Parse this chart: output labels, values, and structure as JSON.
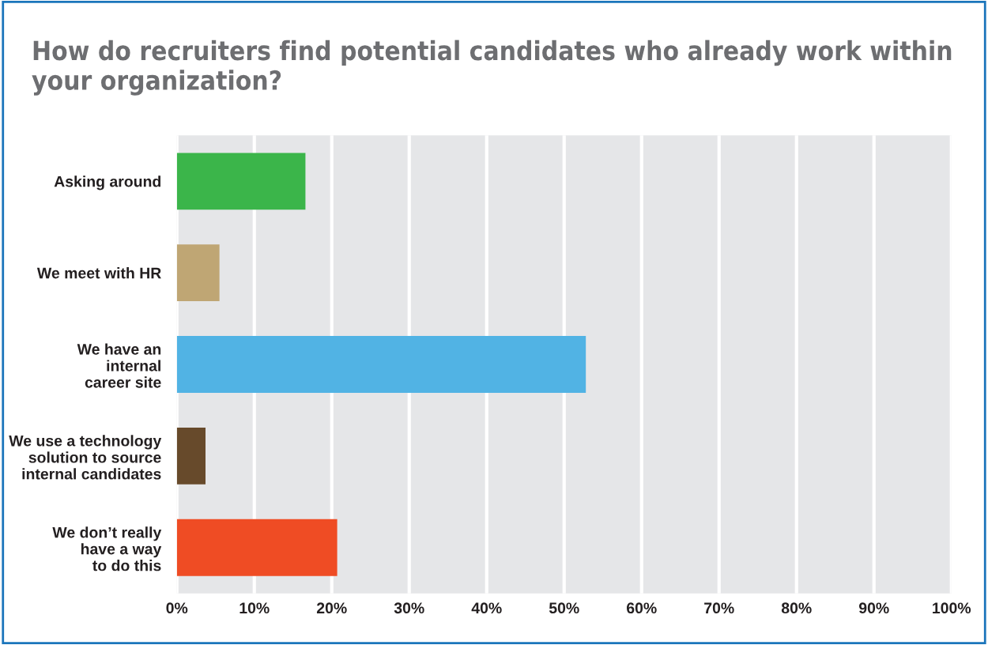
{
  "chart_data": {
    "type": "bar",
    "orientation": "horizontal",
    "title": "How do recruiters find potential candidates who already work within your organization?",
    "categories": [
      "Asking around",
      "We meet with HR",
      "We have an\ninternal\ncareer site",
      "We use a technology\nsolution to source\ninternal candidates",
      "We don’t really\nhave a way\nto do this"
    ],
    "values": [
      16.6,
      5.5,
      52.8,
      3.7,
      20.7
    ],
    "colors": [
      "#3bb54a",
      "#bfa674",
      "#51b3e4",
      "#674a2b",
      "#ef4c24"
    ],
    "xlim": [
      0,
      100
    ],
    "xticks": [
      {
        "value": 0,
        "label": "0%"
      },
      {
        "value": 10,
        "label": "10%"
      },
      {
        "value": 20,
        "label": "20%"
      },
      {
        "value": 30,
        "label": "30%"
      },
      {
        "value": 40,
        "label": "40%"
      },
      {
        "value": 50,
        "label": "50%"
      },
      {
        "value": 60,
        "label": "60%"
      },
      {
        "value": 70,
        "label": "70%"
      },
      {
        "value": 80,
        "label": "80%"
      },
      {
        "value": 90,
        "label": "90%"
      },
      {
        "value": 100,
        "label": "100%"
      }
    ],
    "grid": "x"
  }
}
